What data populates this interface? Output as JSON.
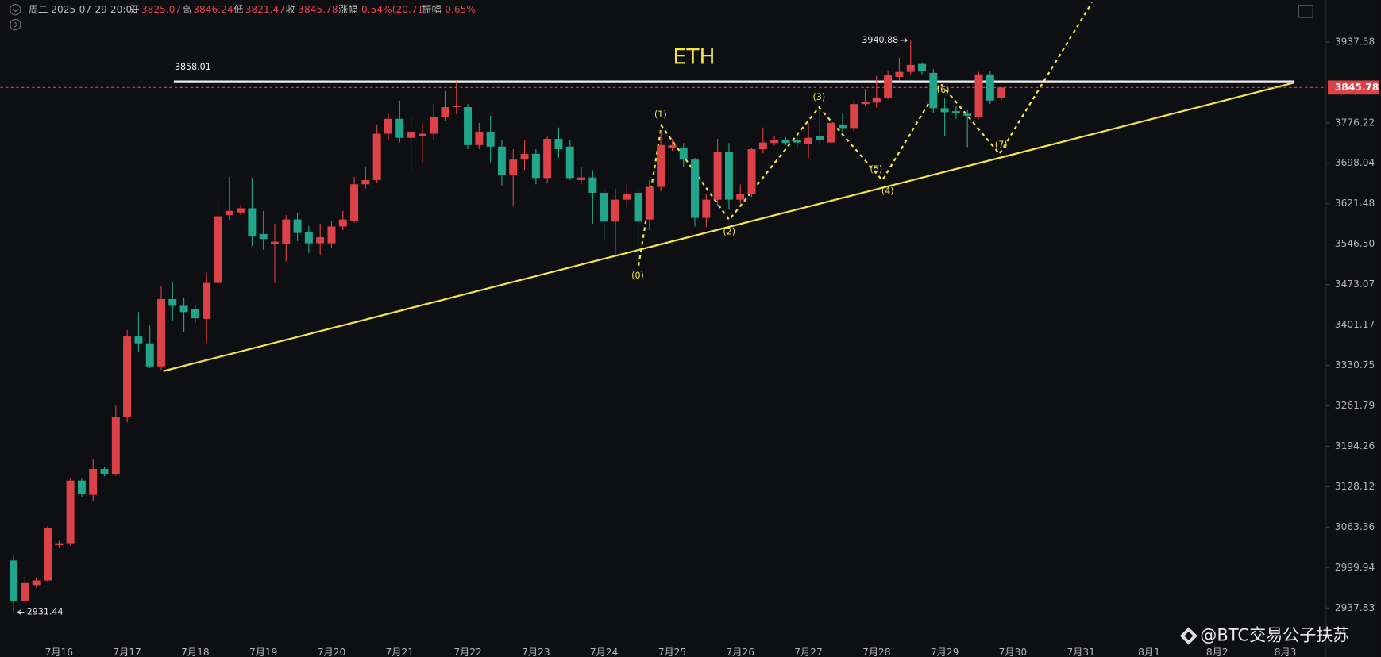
{
  "header": {
    "time": "周二 2025-07-29 20:00",
    "open_label": "开",
    "high_label": "高",
    "low_label": "低",
    "close_label": "收",
    "change_label": "涨幅",
    "change": "0.54%(20.71)",
    "amplitude_label": "振幅",
    "amplitude": "0.65%"
  },
  "chart_data": {
    "type": "candlestick",
    "title": "ETH",
    "categories": [
      null,
      null,
      null,
      null,
      "7月16",
      null,
      null,
      null,
      null,
      null,
      "7月17",
      null,
      null,
      null,
      null,
      null,
      "7月18",
      null,
      null,
      null,
      null,
      null,
      "7月19",
      null,
      null,
      null,
      null,
      null,
      "7月20",
      null,
      null,
      null,
      null,
      null,
      "7月21",
      null,
      null,
      null,
      null,
      null,
      "7月22",
      null,
      null,
      null,
      null,
      null,
      "7月23",
      null,
      null,
      null,
      null,
      null,
      "7月24",
      null,
      null,
      null,
      null,
      null,
      "7月25",
      null,
      null,
      null,
      null,
      null,
      "7月26",
      null,
      null,
      null,
      null,
      null,
      "7月27",
      null,
      null,
      null,
      null,
      null,
      "7月28",
      null,
      null,
      null,
      null,
      null,
      "7月29",
      null,
      null,
      null,
      null,
      null,
      "7月30",
      null,
      null,
      null,
      null,
      null,
      "7月31",
      null,
      null,
      null,
      null,
      null,
      "8月1",
      null,
      null,
      null,
      null,
      null,
      "8月2",
      null,
      null,
      null,
      null,
      null,
      "8月3",
      null,
      null,
      null
    ],
    "open": [
      3011,
      2949,
      2973,
      2980,
      3035,
      3038,
      3138,
      3115,
      3157,
      3149,
      3243,
      3381,
      3369,
      3329,
      3447,
      3435,
      3429,
      3412,
      3476,
      3600,
      3605,
      3613,
      3565,
      3546,
      3546,
      3592,
      3569,
      3548,
      3548,
      3579,
      3590,
      3658,
      3666,
      3755,
      3784,
      3747,
      3750,
      3755,
      3788,
      3807,
      3807,
      3733,
      3759,
      3730,
      3675,
      3705,
      3716,
      3670,
      3745,
      3730,
      3666,
      3671,
      3642,
      3588,
      3629,
      3642,
      3592,
      3653,
      3728,
      3728,
      3705,
      3595,
      3629,
      3720,
      3629,
      3639,
      3725,
      3737,
      3742,
      3742,
      3735,
      3750,
      3738,
      3772,
      3766,
      3813,
      3816,
      3826,
      3867,
      3877,
      3893,
      3875,
      3805,
      3799,
      3794,
      3788,
      3872,
      3825.07,
      null,
      null,
      null,
      null,
      null,
      null,
      null,
      null,
      null,
      null,
      null,
      null,
      null,
      null,
      null,
      null,
      null,
      null,
      null,
      null,
      null,
      null,
      null,
      null,
      null,
      null,
      null,
      null
    ],
    "high": [
      3020,
      2987,
      2985,
      3065,
      3042,
      3141,
      3142,
      3174,
      3160,
      3262,
      3392,
      3424,
      3400,
      3470,
      3479,
      3449,
      3436,
      3494,
      3628,
      3672,
      3620,
      3670,
      3608,
      3584,
      3600,
      3605,
      3580,
      3584,
      3589,
      3608,
      3672,
      3690,
      3773,
      3796,
      3820,
      3788,
      3776,
      3813,
      3839,
      3858,
      3813,
      3776,
      3790,
      3742,
      3725,
      3742,
      3725,
      3750,
      3767,
      3742,
      3690,
      3685,
      3650,
      3650,
      3658,
      3650,
      3666,
      3761,
      3745,
      3737,
      3708,
      3639,
      3745,
      3737,
      3658,
      3728,
      3767,
      3750,
      3748,
      3759,
      3776,
      3801,
      3784,
      3796,
      3820,
      3843,
      3869,
      3879,
      3905,
      3940.88,
      3896,
      3882,
      3824,
      3810,
      3801,
      3877,
      3879,
      3846.24,
      null,
      null,
      null,
      null,
      null,
      null,
      null,
      null,
      null,
      null,
      null,
      null,
      null,
      null,
      null,
      null,
      null,
      null,
      null,
      null,
      null,
      null,
      null,
      null,
      null,
      null,
      null,
      null
    ],
    "low": [
      2931.44,
      2946,
      2969,
      2977,
      3030,
      3034,
      3112,
      3105,
      3145,
      3146,
      3234,
      3354,
      3326,
      3323,
      3409,
      3388,
      3405,
      3370,
      3473,
      3592,
      3600,
      3543,
      3536,
      3476,
      3515,
      3552,
      3530,
      3527,
      3540,
      3572,
      3586,
      3650,
      3661,
      3743,
      3738,
      3685,
      3700,
      3743,
      3780,
      3793,
      3725,
      3725,
      3700,
      3655,
      3616,
      3685,
      3658,
      3661,
      3708,
      3666,
      3658,
      3584,
      3552,
      3528,
      3616,
      3511,
      3572,
      3645,
      3722,
      3690,
      3579,
      3578,
      3616,
      3610,
      3622,
      3634,
      3717,
      3732,
      3733,
      3725,
      3708,
      3733,
      3733,
      3759,
      3759,
      3810,
      3806,
      3823,
      3861,
      3872,
      3872,
      3796,
      3751,
      3784,
      3729,
      3784,
      3813,
      3821.47,
      null,
      null,
      null,
      null,
      null,
      null,
      null,
      null,
      null,
      null,
      null,
      null,
      null,
      null,
      null,
      null,
      null,
      null,
      null,
      null,
      null,
      null,
      null,
      null,
      null,
      null,
      null,
      null
    ],
    "close": [
      2949,
      2976,
      2980,
      3062,
      3038,
      3138,
      3116,
      3157,
      3149,
      3243,
      3381,
      3369,
      3329,
      3447,
      3435,
      3424,
      3413,
      3476,
      3598,
      3608,
      3613,
      3562,
      3556,
      3551,
      3592,
      3567,
      3548,
      3559,
      3579,
      3592,
      3658,
      3666,
      3755,
      3784,
      3747,
      3759,
      3755,
      3788,
      3807,
      3810,
      3733,
      3759,
      3730,
      3675,
      3705,
      3716,
      3670,
      3745,
      3725,
      3670,
      3671,
      3642,
      3588,
      3629,
      3639,
      3588,
      3653,
      3733,
      3733,
      3705,
      3595,
      3629,
      3720,
      3629,
      3639,
      3725,
      3738,
      3742,
      3737,
      3738,
      3747,
      3742,
      3776,
      3766,
      3813,
      3818,
      3826,
      3870,
      3877,
      3891,
      3879,
      3805,
      3797,
      3796,
      3790,
      3872,
      3820,
      3845.78,
      null,
      null,
      null,
      null,
      null,
      null,
      null,
      null,
      null,
      null,
      null,
      null,
      null,
      null,
      null,
      null,
      null,
      null,
      null,
      null,
      null,
      null,
      null,
      null,
      null,
      null,
      null,
      null
    ],
    "up_color": "#dd4249",
    "down_color": "#22a68b",
    "log_scale": true,
    "ylim": [
      2880,
      4024
    ],
    "yticks": [
      3937.58,
      3776.22,
      3698.04,
      3621.48,
      {
        "value": 3546.5,
        "label": "3546.50"
      },
      3473.07,
      3401.17,
      3330.75,
      3261.79,
      3194.26,
      3128.12,
      3063.36,
      2999.94,
      2937.83
    ],
    "level": 3858.01,
    "wave_labels": [
      "(0)",
      "(1)",
      "(2)",
      "(3)",
      "(4)",
      "(5)",
      "(6)",
      "(7)"
    ],
    "watermark": "@BTC交易公子扶苏"
  }
}
